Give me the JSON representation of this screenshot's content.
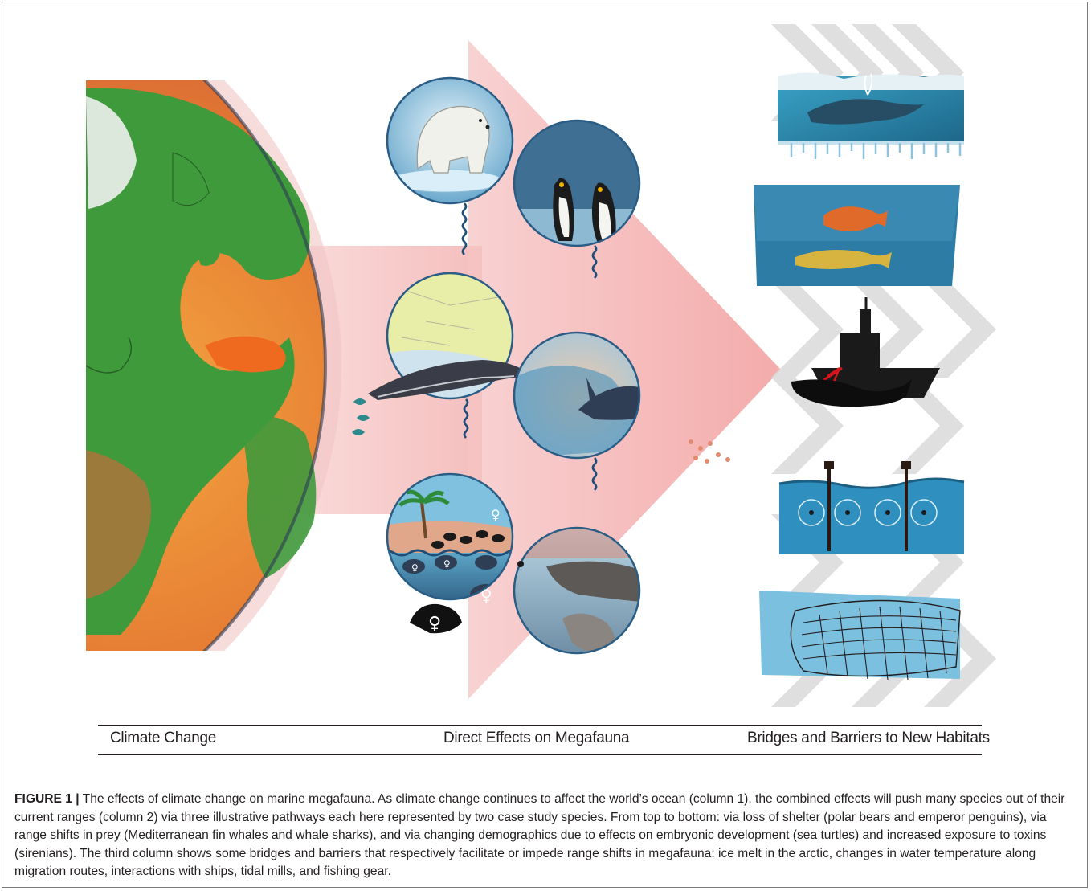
{
  "figure": {
    "columns": [
      {
        "label": "Climate Change"
      },
      {
        "label": "Direct Effects on Megafauna"
      },
      {
        "label": "Bridges and Barriers to New Habitats"
      }
    ],
    "icons": {
      "globe": "earth-globe-icon",
      "polar_bear": "polar-bear-icon",
      "penguins": "emperor-penguins-icon",
      "fin_whale": "fin-whale-icon",
      "whale_shark": "whale-shark-icon",
      "sea_turtles": "sea-turtles-icon",
      "sirenians": "manatee-icon",
      "ice_melt": "ice-melt-icon",
      "fish": "fish-icon",
      "ship": "ship-icon",
      "tidal_mills": "tidal-mill-icon",
      "fishing_net": "fishing-net-icon"
    },
    "female_symbol": "♀",
    "colors": {
      "ocean_warm": "#e8893a",
      "land": "#3f9a3c",
      "arrow": "#f3b3b3",
      "deep_water": "#1f5e7a",
      "circle_border": "#2a5d86"
    }
  },
  "caption": {
    "label": "FIGURE 1 |",
    "text": " The effects of climate change on marine megafauna. As climate change continues to affect the world’s ocean (column 1), the combined effects will push many species out of their current ranges (column 2) via three illustrative pathways each here represented by two case study species. From top to bottom: via loss of shelter (polar bears and emperor penguins), via range shifts in prey (Mediterranean fin whales and whale sharks), and via changing demographics due to effects on embryonic development (sea turtles) and increased exposure to toxins (sirenians). The third column shows some bridges and barriers that respectively facilitate or impede range shifts in megafauna: ice melt in the arctic, changes in water temperature along migration routes, interactions with ships, tidal mills, and fishing gear."
  }
}
